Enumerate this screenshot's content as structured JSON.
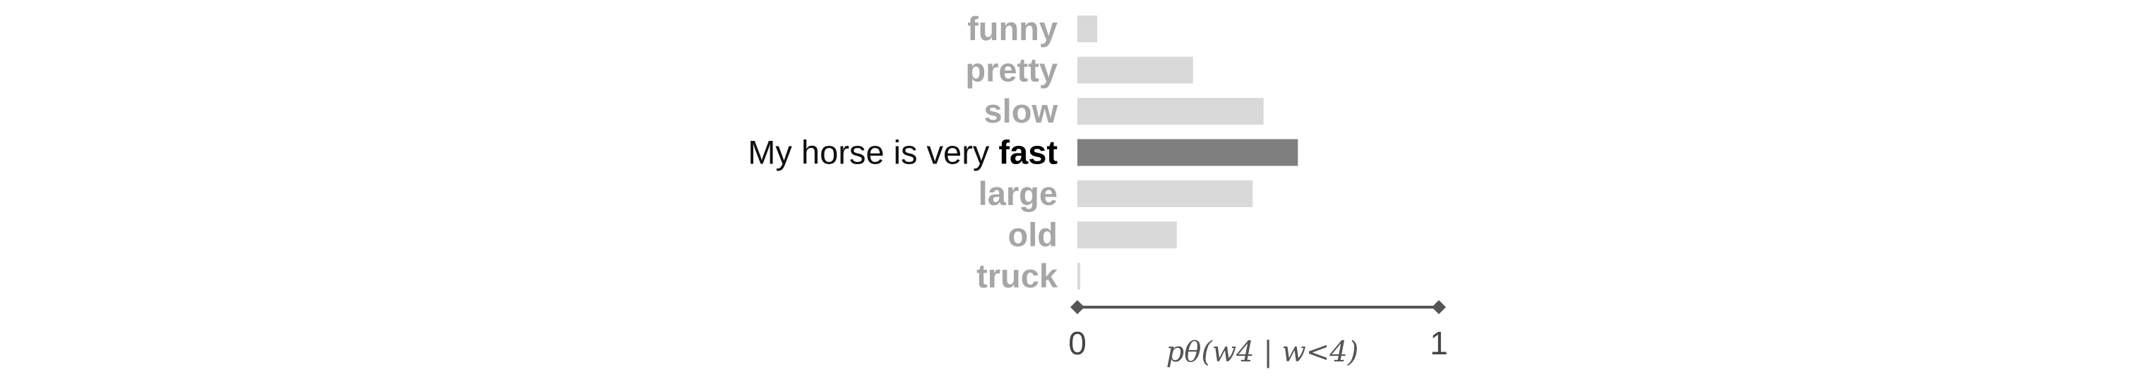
{
  "chart_data": {
    "type": "bar",
    "orientation": "horizontal",
    "sentence_prefix": "My horse is very",
    "highlighted_category": "fast",
    "categories": [
      "funny",
      "pretty",
      "slow",
      "fast",
      "large",
      "old",
      "truck"
    ],
    "values": [
      0.055,
      0.32,
      0.515,
      0.61,
      0.485,
      0.275,
      0.008
    ],
    "xlabel": "pθ(w4 | w<4)",
    "xlim": [
      0,
      1
    ],
    "xticks": [
      "0",
      "1"
    ],
    "colors": {
      "bar": "#d9d9d9",
      "highlight_bar": "#7f7f7f",
      "label": "#a6a6a6",
      "highlight_label": "#000000",
      "axis": "#555555"
    }
  }
}
